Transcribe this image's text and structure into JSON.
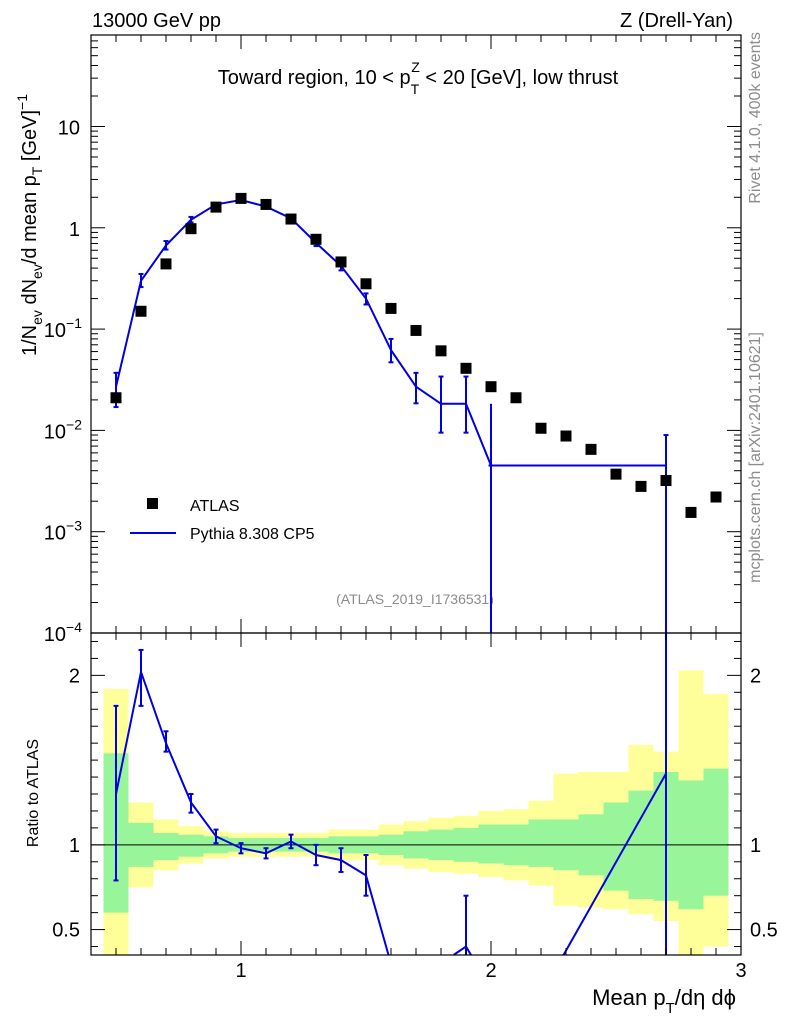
{
  "header": {
    "left": "13000 GeV pp",
    "right": "Z (Drell-Yan)"
  },
  "side": {
    "rivet": "Rivet 4.1.0,  400k events",
    "mcplots": "mcplots.cern.ch [arXiv:2401.10621]"
  },
  "chart_data": [
    {
      "type": "scatter",
      "name": "main",
      "title": "Toward region, 10 < p_T^Z < 20 [GeV], low thrust",
      "ylabel": "1/N_ev dN_ev/d mean p_T [GeV]^-1",
      "xlabel": "",
      "xlim": [
        0.4,
        3.0
      ],
      "ylim": [
        0.0001,
        80
      ],
      "yscale": "log",
      "yticks": [
        {
          "value": 10,
          "label": "10"
        },
        {
          "value": 1,
          "label": "1"
        },
        {
          "value": 0.1,
          "label": "10",
          "exp": "−1"
        },
        {
          "value": 0.01,
          "label": "10",
          "exp": "−2"
        },
        {
          "value": 0.001,
          "label": "10",
          "exp": "−3"
        },
        {
          "value": 0.0001,
          "label": "10",
          "exp": "−4"
        }
      ],
      "watermark": "(ATLAS_2019_I1736531)",
      "legend": {
        "position": "bottom-left",
        "entries": [
          {
            "label": "ATLAS",
            "style": "marker",
            "color": "#000000"
          },
          {
            "label": "Pythia 8.308 CP5",
            "style": "line",
            "color": "#0000e0"
          }
        ]
      },
      "series": [
        {
          "name": "ATLAS",
          "color": "#000000",
          "points": [
            {
              "x": 0.5,
              "y": 0.021
            },
            {
              "x": 0.6,
              "y": 0.15
            },
            {
              "x": 0.7,
              "y": 0.44
            },
            {
              "x": 0.8,
              "y": 0.98
            },
            {
              "x": 0.9,
              "y": 1.6
            },
            {
              "x": 1.0,
              "y": 1.95
            },
            {
              "x": 1.1,
              "y": 1.7
            },
            {
              "x": 1.2,
              "y": 1.22
            },
            {
              "x": 1.3,
              "y": 0.77
            },
            {
              "x": 1.4,
              "y": 0.46
            },
            {
              "x": 1.5,
              "y": 0.28
            },
            {
              "x": 1.6,
              "y": 0.16
            },
            {
              "x": 1.7,
              "y": 0.097
            },
            {
              "x": 1.8,
              "y": 0.061
            },
            {
              "x": 1.9,
              "y": 0.041
            },
            {
              "x": 2.0,
              "y": 0.027
            },
            {
              "x": 2.1,
              "y": 0.021
            },
            {
              "x": 2.2,
              "y": 0.0105
            },
            {
              "x": 2.3,
              "y": 0.0088
            },
            {
              "x": 2.4,
              "y": 0.0065
            },
            {
              "x": 2.5,
              "y": 0.0037
            },
            {
              "x": 2.6,
              "y": 0.0028
            },
            {
              "x": 2.7,
              "y": 0.0032
            },
            {
              "x": 2.8,
              "y": 0.00155
            },
            {
              "x": 2.9,
              "y": 0.0022
            }
          ]
        },
        {
          "name": "Pythia 8.308 CP5",
          "color": "#0000e0",
          "line": [
            [
              0.5,
              0.027
            ],
            [
              0.6,
              0.3
            ],
            [
              0.7,
              0.67
            ],
            [
              0.8,
              1.2
            ],
            [
              0.9,
              1.7
            ],
            [
              1.0,
              1.88
            ],
            [
              1.1,
              1.62
            ],
            [
              1.2,
              1.24
            ],
            [
              1.3,
              0.71
            ],
            [
              1.4,
              0.42
            ],
            [
              1.5,
              0.2
            ],
            [
              1.6,
              0.062
            ],
            [
              1.7,
              0.027
            ],
            [
              1.8,
              0.0183
            ],
            [
              1.9,
              0.0183
            ],
            [
              2.0,
              0.0045
            ],
            [
              2.7,
              0.0045
            ]
          ],
          "errors": [
            {
              "x": 0.5,
              "lo": 0.017,
              "hi": 0.037
            },
            {
              "x": 0.6,
              "lo": 0.26,
              "hi": 0.35
            },
            {
              "x": 0.7,
              "lo": 0.61,
              "hi": 0.74
            },
            {
              "x": 0.8,
              "lo": 1.13,
              "hi": 1.28
            },
            {
              "x": 0.9,
              "lo": 1.64,
              "hi": 1.76
            },
            {
              "x": 1.0,
              "lo": 1.82,
              "hi": 1.94
            },
            {
              "x": 1.1,
              "lo": 1.56,
              "hi": 1.68
            },
            {
              "x": 1.2,
              "lo": 1.18,
              "hi": 1.3
            },
            {
              "x": 1.3,
              "lo": 0.66,
              "hi": 0.76
            },
            {
              "x": 1.4,
              "lo": 0.38,
              "hi": 0.46
            },
            {
              "x": 1.5,
              "lo": 0.175,
              "hi": 0.225
            },
            {
              "x": 1.6,
              "lo": 0.047,
              "hi": 0.08
            },
            {
              "x": 1.7,
              "lo": 0.0185,
              "hi": 0.037
            },
            {
              "x": 1.8,
              "lo": 0.0095,
              "hi": 0.034
            },
            {
              "x": 1.9,
              "lo": 0.0095,
              "hi": 0.034
            },
            {
              "x": 2.0,
              "lo": 5e-05,
              "hi": 0.0045
            },
            {
              "x": 2.7,
              "lo": 5e-05,
              "hi": 0.009
            }
          ]
        }
      ]
    },
    {
      "type": "line",
      "name": "ratio",
      "xlabel": "Mean p_T/dη dϕ",
      "ylabel": "Ratio to ATLAS",
      "xlim": [
        0.4,
        3.0
      ],
      "ylim": [
        0.35,
        2.25
      ],
      "xticks": [
        {
          "value": 1,
          "label": "1"
        },
        {
          "value": 2,
          "label": "2"
        },
        {
          "value": 3,
          "label": "3"
        }
      ],
      "yticks": [
        {
          "value": 0.5,
          "label": "0.5"
        },
        {
          "value": 1,
          "label": "1"
        },
        {
          "value": 2,
          "label": "2"
        }
      ],
      "reference_line": 1.0,
      "bands": {
        "edges": [
          0.45,
          0.55,
          0.65,
          0.75,
          0.85,
          0.95,
          1.05,
          1.15,
          1.25,
          1.35,
          1.45,
          1.55,
          1.65,
          1.75,
          1.85,
          1.95,
          2.05,
          2.15,
          2.25,
          2.35,
          2.45,
          2.55,
          2.65,
          2.75,
          2.85,
          2.95
        ],
        "green_color": "#99f599",
        "yellow_color": "#ffff99",
        "green": [
          [
            0.6,
            1.54
          ],
          [
            0.87,
            1.13
          ],
          [
            0.91,
            1.07
          ],
          [
            0.93,
            1.06
          ],
          [
            0.95,
            1.05
          ],
          [
            0.96,
            1.04
          ],
          [
            0.96,
            1.04
          ],
          [
            0.96,
            1.04
          ],
          [
            0.96,
            1.04
          ],
          [
            0.95,
            1.05
          ],
          [
            0.95,
            1.05
          ],
          [
            0.94,
            1.06
          ],
          [
            0.92,
            1.08
          ],
          [
            0.91,
            1.09
          ],
          [
            0.9,
            1.1
          ],
          [
            0.89,
            1.12
          ],
          [
            0.88,
            1.12
          ],
          [
            0.87,
            1.15
          ],
          [
            0.85,
            1.15
          ],
          [
            0.82,
            1.18
          ],
          [
            0.73,
            1.25
          ],
          [
            0.68,
            1.32
          ],
          [
            0.67,
            1.43
          ],
          [
            0.62,
            1.38
          ],
          [
            0.7,
            1.45
          ]
        ],
        "yellow": [
          [
            0.3,
            1.92
          ],
          [
            0.75,
            1.25
          ],
          [
            0.85,
            1.15
          ],
          [
            0.89,
            1.11
          ],
          [
            0.92,
            1.08
          ],
          [
            0.93,
            1.07
          ],
          [
            0.93,
            1.07
          ],
          [
            0.93,
            1.07
          ],
          [
            0.93,
            1.07
          ],
          [
            0.91,
            1.09
          ],
          [
            0.91,
            1.09
          ],
          [
            0.88,
            1.12
          ],
          [
            0.86,
            1.14
          ],
          [
            0.84,
            1.16
          ],
          [
            0.83,
            1.17
          ],
          [
            0.81,
            1.2
          ],
          [
            0.79,
            1.21
          ],
          [
            0.76,
            1.26
          ],
          [
            0.64,
            1.42
          ],
          [
            0.63,
            1.43
          ],
          [
            0.62,
            1.43
          ],
          [
            0.59,
            1.59
          ],
          [
            0.55,
            1.55
          ],
          [
            0.32,
            2.03
          ],
          [
            0.4,
            1.89
          ]
        ]
      },
      "series": [
        {
          "name": "Pythia 8.308 CP5 / ATLAS",
          "color": "#0000e0",
          "line": [
            [
              0.5,
              1.3
            ],
            [
              0.6,
              2.02
            ],
            [
              0.7,
              1.6
            ],
            [
              0.8,
              1.25
            ],
            [
              0.9,
              1.05
            ],
            [
              1.0,
              0.98
            ],
            [
              1.1,
              0.95
            ],
            [
              1.2,
              1.02
            ],
            [
              1.3,
              0.94
            ],
            [
              1.4,
              0.91
            ],
            [
              1.5,
              0.82
            ],
            [
              1.59,
              0.35
            ]
          ],
          "extra_segments": [
            [
              [
                1.85,
                0.35
              ],
              [
                1.9,
                0.4
              ],
              [
                1.92,
                0.35
              ]
            ],
            [
              [
                2.29,
                0.35
              ],
              [
                2.7,
                1.42
              ]
            ]
          ],
          "errors": [
            {
              "x": 0.5,
              "lo": 0.79,
              "hi": 1.82
            },
            {
              "x": 0.6,
              "lo": 1.82,
              "hi": 2.15
            },
            {
              "x": 0.7,
              "lo": 1.55,
              "hi": 1.67
            },
            {
              "x": 0.8,
              "lo": 1.19,
              "hi": 1.3
            },
            {
              "x": 0.9,
              "lo": 1.01,
              "hi": 1.09
            },
            {
              "x": 1.0,
              "lo": 0.95,
              "hi": 1.01
            },
            {
              "x": 1.1,
              "lo": 0.92,
              "hi": 0.98
            },
            {
              "x": 1.2,
              "lo": 0.98,
              "hi": 1.06
            },
            {
              "x": 1.3,
              "lo": 0.88,
              "hi": 1.0
            },
            {
              "x": 1.4,
              "lo": 0.84,
              "hi": 0.98
            },
            {
              "x": 1.5,
              "lo": 0.7,
              "hi": 0.94
            },
            {
              "x": 1.9,
              "lo": 0.35,
              "hi": 0.7
            },
            {
              "x": 2.7,
              "lo": 0.35,
              "hi": 2.25
            }
          ]
        }
      ]
    }
  ]
}
